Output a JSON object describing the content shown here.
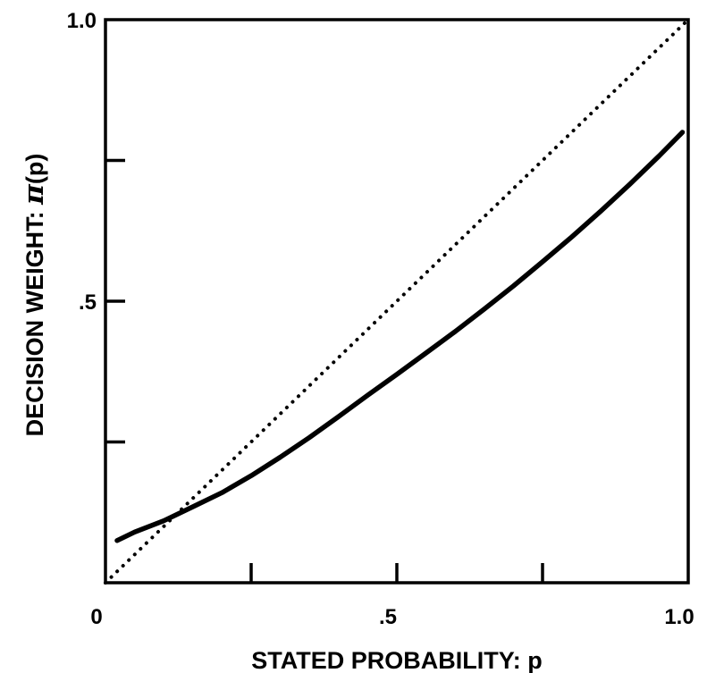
{
  "chart_data": {
    "type": "line",
    "xlabel": "STATED PROBABILITY: p",
    "ylabel_prefix": "DECISION  WEIGHT: ",
    "ylabel_symbol": "π",
    "ylabel_suffix": "(p)",
    "xlim": [
      0,
      1
    ],
    "ylim": [
      0,
      1
    ],
    "x_ticks": [
      {
        "value": 0,
        "label": "0"
      },
      {
        "value": 0.25,
        "label": ""
      },
      {
        "value": 0.5,
        "label": ".5"
      },
      {
        "value": 0.75,
        "label": ""
      },
      {
        "value": 1,
        "label": "1.0"
      }
    ],
    "y_ticks": [
      {
        "value": 0.25,
        "label": ""
      },
      {
        "value": 0.5,
        "label": ".5"
      },
      {
        "value": 0.75,
        "label": ""
      },
      {
        "value": 1,
        "label": "1.0"
      }
    ],
    "grid": false,
    "legend": "none",
    "series": [
      {
        "style": "dotted",
        "color": "#000000",
        "x": [
          0,
          1
        ],
        "y": [
          0,
          1
        ]
      },
      {
        "style": "solid",
        "color": "#000000",
        "x": [
          0.02,
          0.05,
          0.1,
          0.15,
          0.2,
          0.25,
          0.3,
          0.35,
          0.4,
          0.45,
          0.5,
          0.55,
          0.6,
          0.65,
          0.7,
          0.75,
          0.8,
          0.85,
          0.9,
          0.95,
          0.99
        ],
        "y": [
          0.075,
          0.09,
          0.11,
          0.135,
          0.16,
          0.19,
          0.223,
          0.258,
          0.295,
          0.333,
          0.37,
          0.408,
          0.446,
          0.486,
          0.527,
          0.57,
          0.614,
          0.66,
          0.708,
          0.758,
          0.8
        ]
      }
    ]
  }
}
